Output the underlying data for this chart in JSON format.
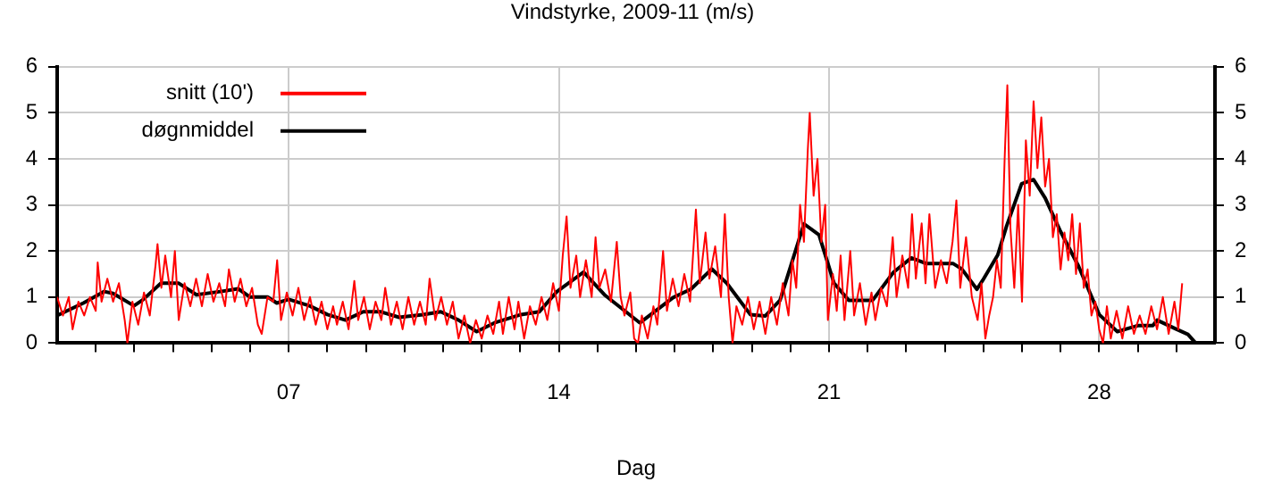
{
  "chart_data": {
    "type": "line",
    "title": "Vindstyrke, 2009-11 (m/s)",
    "xlabel": "Dag",
    "xlim": [
      1,
      31
    ],
    "xticks": [
      {
        "value": 2,
        "label": null
      },
      {
        "value": 3,
        "label": null
      },
      {
        "value": 4,
        "label": null
      },
      {
        "value": 5,
        "label": null
      },
      {
        "value": 6,
        "label": null
      },
      {
        "value": 7,
        "label": "07"
      },
      {
        "value": 8,
        "label": null
      },
      {
        "value": 9,
        "label": null
      },
      {
        "value": 10,
        "label": null
      },
      {
        "value": 11,
        "label": null
      },
      {
        "value": 12,
        "label": null
      },
      {
        "value": 13,
        "label": null
      },
      {
        "value": 14,
        "label": "14"
      },
      {
        "value": 15,
        "label": null
      },
      {
        "value": 16,
        "label": null
      },
      {
        "value": 17,
        "label": null
      },
      {
        "value": 18,
        "label": null
      },
      {
        "value": 19,
        "label": null
      },
      {
        "value": 20,
        "label": null
      },
      {
        "value": 21,
        "label": "21"
      },
      {
        "value": 22,
        "label": null
      },
      {
        "value": 23,
        "label": null
      },
      {
        "value": 24,
        "label": null
      },
      {
        "value": 25,
        "label": null
      },
      {
        "value": 26,
        "label": null
      },
      {
        "value": 27,
        "label": null
      },
      {
        "value": 28,
        "label": "28"
      },
      {
        "value": 29,
        "label": null
      },
      {
        "value": 30,
        "label": null
      }
    ],
    "ylim": [
      0,
      6
    ],
    "yticks": [
      0,
      1,
      2,
      3,
      4,
      5,
      6
    ],
    "y2lim": [
      0,
      6
    ],
    "y2ticks": [
      0,
      1,
      2,
      3,
      4,
      5,
      6
    ],
    "grid": true,
    "legend": "top left",
    "marker": "none",
    "line_style": "solid",
    "series": [
      {
        "name": "snitt (10')",
        "color": "#ff0000",
        "x": [
          1.0,
          1.15,
          1.3,
          1.4,
          1.55,
          1.7,
          1.85,
          2.0,
          2.05,
          2.15,
          2.3,
          2.45,
          2.6,
          2.75,
          2.82,
          2.95,
          3.1,
          3.25,
          3.4,
          3.55,
          3.6,
          3.7,
          3.8,
          3.95,
          4.05,
          4.15,
          4.3,
          4.45,
          4.6,
          4.75,
          4.9,
          5.05,
          5.2,
          5.35,
          5.45,
          5.6,
          5.75,
          5.9,
          6.05,
          6.2,
          6.3,
          6.45,
          6.6,
          6.7,
          6.8,
          6.95,
          7.1,
          7.25,
          7.4,
          7.55,
          7.7,
          7.85,
          8.0,
          8.15,
          8.25,
          8.4,
          8.55,
          8.7,
          8.8,
          8.95,
          9.1,
          9.25,
          9.4,
          9.5,
          9.65,
          9.8,
          9.95,
          10.1,
          10.25,
          10.4,
          10.55,
          10.65,
          10.8,
          10.95,
          11.1,
          11.25,
          11.4,
          11.55,
          11.7,
          11.85,
          12.0,
          12.15,
          12.3,
          12.45,
          12.55,
          12.7,
          12.85,
          12.95,
          13.1,
          13.25,
          13.4,
          13.55,
          13.7,
          13.85,
          14.0,
          14.1,
          14.2,
          14.3,
          14.45,
          14.55,
          14.7,
          14.85,
          14.95,
          15.05,
          15.2,
          15.35,
          15.5,
          15.6,
          15.7,
          15.85,
          15.95,
          16.05,
          16.15,
          16.3,
          16.45,
          16.55,
          16.7,
          16.8,
          16.95,
          17.1,
          17.25,
          17.4,
          17.55,
          17.65,
          17.8,
          17.9,
          18.05,
          18.2,
          18.3,
          18.4,
          18.5,
          18.6,
          18.75,
          18.9,
          19.05,
          19.2,
          19.35,
          19.5,
          19.65,
          19.8,
          19.95,
          20.05,
          20.15,
          20.25,
          20.35,
          20.45,
          20.5,
          20.6,
          20.7,
          20.8,
          20.9,
          20.97,
          21.1,
          21.2,
          21.3,
          21.4,
          21.55,
          21.65,
          21.8,
          21.95,
          22.1,
          22.2,
          22.35,
          22.5,
          22.65,
          22.75,
          22.9,
          23.05,
          23.15,
          23.25,
          23.4,
          23.5,
          23.6,
          23.75,
          23.9,
          24.05,
          24.2,
          24.3,
          24.4,
          24.55,
          24.7,
          24.85,
          24.95,
          25.05,
          25.15,
          25.25,
          25.35,
          25.45,
          25.55,
          25.62,
          25.7,
          25.8,
          25.9,
          26.0,
          26.1,
          26.2,
          26.3,
          26.4,
          26.5,
          26.6,
          26.7,
          26.8,
          26.9,
          27.0,
          27.1,
          27.2,
          27.3,
          27.4,
          27.5,
          27.6,
          27.7,
          27.8,
          27.9,
          28.0,
          28.1,
          28.2,
          28.3,
          28.45,
          28.6,
          28.75,
          28.9,
          29.05,
          29.2,
          29.35,
          29.5,
          29.65,
          29.8,
          29.95,
          30.05,
          30.15
        ],
        "values": [
          1.0,
          0.6,
          1.0,
          0.3,
          0.9,
          0.6,
          1.0,
          0.7,
          1.75,
          0.9,
          1.4,
          0.9,
          1.3,
          0.5,
          0.0,
          0.9,
          0.4,
          1.1,
          0.6,
          1.7,
          2.15,
          1.2,
          1.9,
          1.0,
          2.0,
          0.5,
          1.3,
          0.8,
          1.4,
          0.8,
          1.5,
          0.9,
          1.3,
          0.8,
          1.6,
          0.9,
          1.4,
          0.8,
          1.2,
          0.4,
          0.2,
          1.0,
          0.9,
          1.8,
          0.5,
          1.1,
          0.6,
          1.2,
          0.5,
          1.0,
          0.4,
          0.9,
          0.3,
          0.8,
          0.4,
          0.9,
          0.3,
          1.35,
          0.5,
          1.0,
          0.3,
          0.9,
          0.5,
          1.2,
          0.4,
          0.9,
          0.3,
          1.0,
          0.4,
          0.9,
          0.4,
          1.4,
          0.5,
          1.0,
          0.4,
          0.9,
          0.1,
          0.6,
          0.0,
          0.5,
          0.1,
          0.6,
          0.2,
          0.9,
          0.2,
          1.0,
          0.3,
          0.9,
          0.1,
          0.8,
          0.4,
          1.0,
          0.5,
          1.3,
          0.7,
          1.9,
          2.75,
          1.2,
          1.9,
          1.0,
          1.8,
          1.0,
          2.3,
          1.2,
          1.6,
          0.9,
          2.2,
          1.0,
          0.6,
          1.1,
          0.1,
          0.0,
          0.6,
          0.1,
          0.8,
          0.4,
          2.0,
          0.7,
          1.4,
          0.8,
          1.5,
          0.9,
          2.9,
          1.3,
          2.4,
          1.4,
          2.1,
          1.0,
          2.8,
          1.0,
          0.0,
          0.8,
          0.4,
          1.0,
          0.3,
          0.9,
          0.2,
          1.0,
          0.4,
          1.3,
          0.6,
          1.8,
          1.2,
          3.0,
          2.2,
          4.2,
          5.0,
          3.2,
          4.0,
          2.2,
          3.0,
          0.5,
          1.5,
          0.7,
          1.9,
          0.5,
          2.0,
          0.6,
          1.3,
          0.4,
          1.1,
          0.5,
          1.2,
          0.8,
          2.3,
          1.0,
          1.9,
          1.2,
          2.8,
          1.4,
          2.6,
          1.3,
          2.8,
          1.2,
          1.8,
          1.3,
          2.2,
          3.1,
          1.2,
          2.3,
          1.0,
          0.5,
          1.3,
          0.1,
          0.6,
          1.0,
          1.8,
          1.2,
          4.0,
          5.6,
          2.5,
          1.2,
          3.0,
          0.9,
          4.4,
          3.2,
          5.25,
          3.8,
          4.9,
          3.4,
          4.0,
          2.3,
          2.8,
          1.6,
          2.4,
          1.8,
          2.8,
          1.5,
          2.6,
          1.2,
          1.6,
          0.6,
          0.9,
          0.3,
          0.0,
          0.8,
          0.1,
          0.7,
          0.1,
          0.8,
          0.2,
          0.6,
          0.2,
          0.8,
          0.3,
          1.0,
          0.2,
          0.9,
          0.3,
          1.3
        ]
      },
      {
        "name": "døgnmiddel",
        "color": "#000000",
        "x": [
          1.0,
          1.68,
          2.22,
          2.45,
          2.99,
          3.22,
          3.69,
          4.15,
          4.61,
          5.23,
          5.69,
          6.0,
          6.46,
          6.69,
          7.0,
          7.54,
          8.0,
          8.47,
          8.93,
          9.39,
          9.86,
          10.48,
          10.94,
          11.4,
          11.87,
          12.33,
          13.02,
          13.49,
          13.95,
          14.64,
          15.18,
          16.1,
          16.96,
          17.42,
          17.96,
          18.35,
          18.96,
          19.35,
          19.73,
          20.35,
          20.74,
          21.13,
          21.51,
          22.13,
          22.67,
          23.13,
          23.51,
          24.21,
          24.44,
          24.83,
          24.98,
          25.37,
          25.6,
          25.99,
          26.3,
          26.6,
          27.0,
          27.46,
          28.0,
          28.47,
          29.0,
          29.39,
          29.5,
          29.98,
          30.3,
          30.5
        ],
        "values": [
          0.6,
          0.87,
          1.12,
          1.08,
          0.81,
          0.94,
          1.3,
          1.3,
          1.05,
          1.12,
          1.18,
          1.0,
          1.0,
          0.87,
          0.95,
          0.81,
          0.62,
          0.5,
          0.68,
          0.68,
          0.56,
          0.62,
          0.68,
          0.5,
          0.25,
          0.44,
          0.62,
          0.68,
          1.12,
          1.54,
          1.05,
          0.44,
          0.99,
          1.17,
          1.61,
          1.3,
          0.62,
          0.59,
          0.93,
          2.59,
          2.35,
          1.3,
          0.93,
          0.93,
          1.54,
          1.85,
          1.73,
          1.73,
          1.61,
          1.17,
          1.36,
          1.91,
          2.54,
          3.46,
          3.55,
          3.15,
          2.42,
          1.68,
          0.62,
          0.25,
          0.38,
          0.38,
          0.5,
          0.31,
          0.19,
          0.0
        ]
      }
    ]
  }
}
